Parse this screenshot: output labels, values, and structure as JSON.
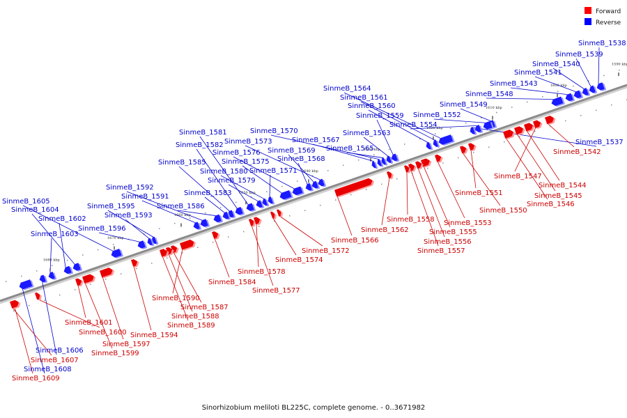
{
  "caption": "Sinorhizobium meliloti BL225C, complete genome. - 0..3671982",
  "legend": [
    {
      "label": "Forward",
      "color": "#ff0000"
    },
    {
      "label": "Reverse",
      "color": "#0000ff"
    }
  ],
  "colors": {
    "forward": "#e80000",
    "reverse": "#1a1aff",
    "forward_label": "#cc0000",
    "reverse_label": "#0000cc",
    "track": "#8a8a8a"
  },
  "ticks": [
    "1590 kbp",
    "1600 kbp",
    "1610 kbp",
    "1620 kbp",
    "1630 kbp",
    "1640 kbp",
    "1650 kbp",
    "1660 kbp",
    "1670 kbp",
    "1680 kbp"
  ],
  "reverse_genes": [
    "SinmeB_1538",
    "SinmeB_1539",
    "SinmeB_1540",
    "SinmeB_1541",
    "SinmeB_1543",
    "SinmeB_1548",
    "SinmeB_1549",
    "SinmeB_1552",
    "SinmeB_1554",
    "SinmeB_1537",
    "SinmeB_1564",
    "SinmeB_1561",
    "SinmeB_1560",
    "SinmeB_1559",
    "SinmeB_1563",
    "SinmeB_1565",
    "SinmeB_1570",
    "SinmeB_1567",
    "SinmeB_1573",
    "SinmeB_1569",
    "SinmeB_1568",
    "SinmeB_1576",
    "SinmeB_1575",
    "SinmeB_1571",
    "SinmeB_1580",
    "SinmeB_1579",
    "SinmeB_1581",
    "SinmeB_1582",
    "SinmeB_1585",
    "SinmeB_1583",
    "SinmeB_1586",
    "SinmeB_1592",
    "SinmeB_1591",
    "SinmeB_1595",
    "SinmeB_1593",
    "SinmeB_1596",
    "SinmeB_1605",
    "SinmeB_1604",
    "SinmeB_1602",
    "SinmeB_1603",
    "SinmeB_1606",
    "SinmeB_1608"
  ],
  "forward_genes": [
    "SinmeB_1542",
    "SinmeB_1547",
    "SinmeB_1544",
    "SinmeB_1545",
    "SinmeB_1546",
    "SinmeB_1551",
    "SinmeB_1550",
    "SinmeB_1553",
    "SinmeB_1555",
    "SinmeB_1556",
    "SinmeB_1557",
    "SinmeB_1558",
    "SinmeB_1562",
    "SinmeB_1566",
    "SinmeB_1572",
    "SinmeB_1574",
    "SinmeB_1578",
    "SinmeB_1577",
    "SinmeB_1584",
    "SinmeB_1590",
    "SinmeB_1587",
    "SinmeB_1588",
    "SinmeB_1589",
    "SinmeB_1594",
    "SinmeB_1597",
    "SinmeB_1599",
    "SinmeB_1601",
    "SinmeB_1600",
    "SinmeB_1607",
    "SinmeB_1609"
  ]
}
